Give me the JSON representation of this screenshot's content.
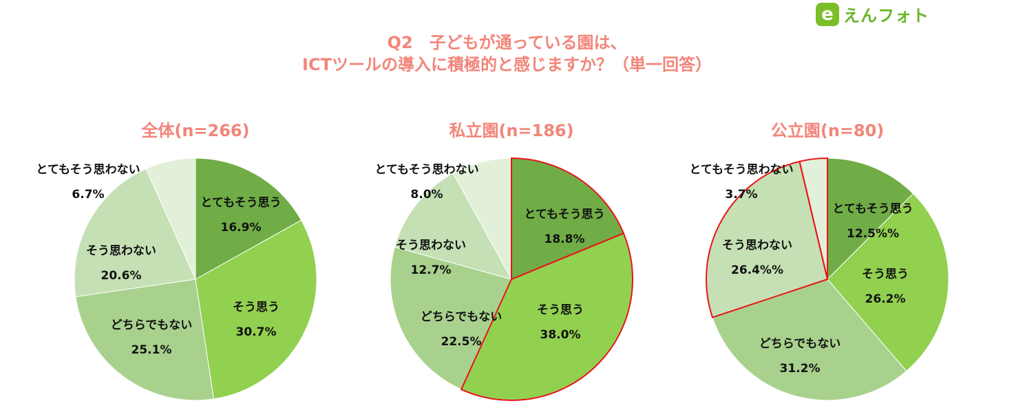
{
  "brand": {
    "badge": "e",
    "name": "えんフォト"
  },
  "title_lines": [
    "Q2　子どもが通っている園は、",
    "ICTツールの導入に積極的と感じますか？（単一回答）"
  ],
  "chart_data": [
    {
      "type": "pie",
      "title": "全体(n=266)",
      "slices": [
        {
          "label": "とてもそう思う",
          "value_label": "16.9%",
          "value": 16.9,
          "color": "#70ad47"
        },
        {
          "label": "そう思う",
          "value_label": "30.7%",
          "value": 30.7,
          "color": "#92d050"
        },
        {
          "label": "どちらでもない",
          "value_label": "25.1%",
          "value": 25.1,
          "color": "#a9d18e"
        },
        {
          "label": "そう思わない",
          "value_label": "20.6%",
          "value": 20.6,
          "color": "#c5e0b4"
        },
        {
          "label": "とてもそう思わない",
          "value_label": "6.7%",
          "value": 6.7,
          "color": "#e2f0d9"
        }
      ],
      "highlighted": []
    },
    {
      "type": "pie",
      "title": "私立園(n=186)",
      "slices": [
        {
          "label": "とてもそう思う",
          "value_label": "18.8%",
          "value": 18.8,
          "color": "#70ad47"
        },
        {
          "label": "そう思う",
          "value_label": "38.0%",
          "value": 38.0,
          "color": "#92d050"
        },
        {
          "label": "どちらでもない",
          "value_label": "22.5%",
          "value": 22.5,
          "color": "#a9d18e"
        },
        {
          "label": "そう思わない",
          "value_label": "12.7%",
          "value": 12.7,
          "color": "#c5e0b4"
        },
        {
          "label": "とてもそう思わない",
          "value_label": "8.0%",
          "value": 8.0,
          "color": "#e2f0d9"
        }
      ],
      "highlighted": [
        "とてもそう思う",
        "そう思う"
      ]
    },
    {
      "type": "pie",
      "title": "公立園(n=80)",
      "slices": [
        {
          "label": "とてもそう思う",
          "value_label": "12.5%%",
          "value": 12.5,
          "color": "#70ad47"
        },
        {
          "label": "そう思う",
          "value_label": "26.2%",
          "value": 26.2,
          "color": "#92d050"
        },
        {
          "label": "どちらでもない",
          "value_label": "31.2%",
          "value": 31.2,
          "color": "#a9d18e"
        },
        {
          "label": "そう思わない",
          "value_label": "26.4%%",
          "value": 26.4,
          "color": "#c5e0b4"
        },
        {
          "label": "とてもそう思わない",
          "value_label": "3.7%",
          "value": 3.7,
          "color": "#e2f0d9"
        }
      ],
      "highlighted": [
        "そう思わない",
        "とてもそう思わない"
      ]
    }
  ]
}
